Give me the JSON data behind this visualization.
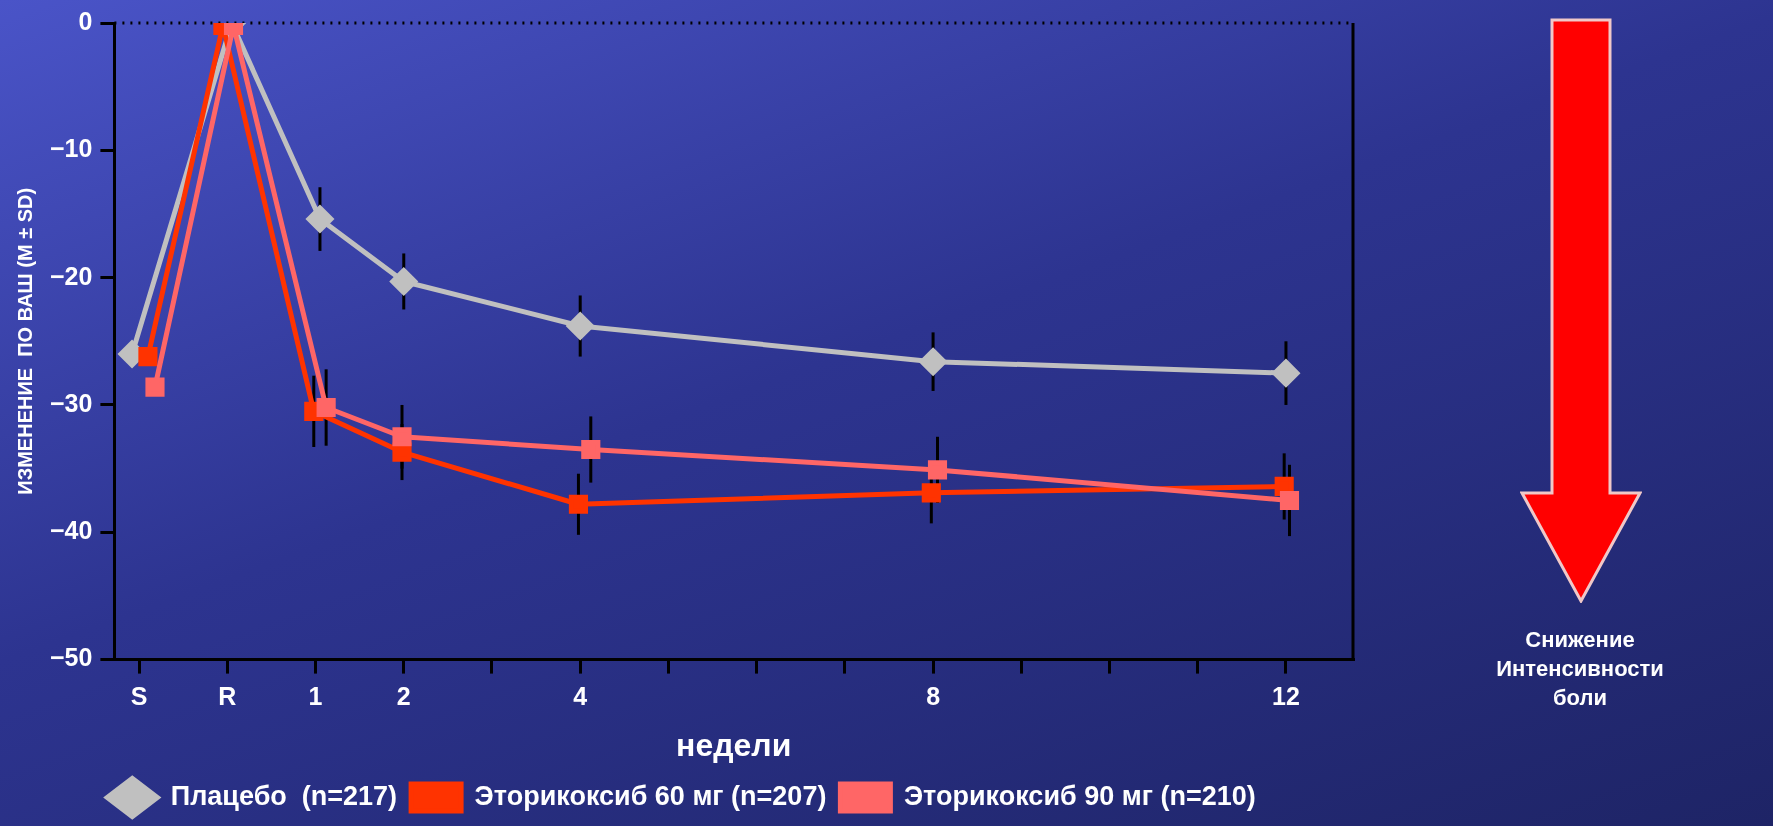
{
  "chart_data": {
    "type": "line",
    "xlabel": "недели",
    "ylabel": "ИЗМЕНЕНИЕ  ПО ВАШ (M ± SD)",
    "xlim": [
      -1.28,
      12.76
    ],
    "xticks": [
      {
        "value": -1,
        "label": "S"
      },
      {
        "value": 0,
        "label": "R"
      },
      1,
      2,
      {
        "value": 3,
        "label": null
      },
      4,
      {
        "value": 5,
        "label": null
      },
      {
        "value": 6,
        "label": null
      },
      {
        "value": 7,
        "label": null
      },
      8,
      {
        "value": 9,
        "label": null
      },
      {
        "value": 10,
        "label": null
      },
      {
        "value": 11,
        "label": null
      },
      12
    ],
    "ylim": [
      -50,
      0
    ],
    "yticks": [
      0,
      {
        "value": -10,
        "label": "−10"
      },
      {
        "value": -20,
        "label": "−20"
      },
      {
        "value": -30,
        "label": "−30"
      },
      {
        "value": -40,
        "label": "−40"
      },
      {
        "value": -50,
        "label": "−50"
      }
    ],
    "grid": false,
    "legend": "bottom",
    "line_style": "solid",
    "ref_lines": [
      {
        "axis": "y",
        "value": 0,
        "color": "#000000",
        "line_style": "dotted"
      }
    ],
    "annotations": [
      "Снижение Интенсивности боли"
    ],
    "series": [
      {
        "name": "Плацебо  (n=217)",
        "color": "#c0c0c0",
        "marker": "diamond",
        "x": [
          -1.08,
          0.05,
          1.05,
          2,
          4,
          8,
          12
        ],
        "values": [
          -26,
          0,
          -15.4,
          -20.3,
          -23.8,
          -26.6,
          -27.5
        ],
        "errors": [
          null,
          null,
          2.5,
          2.2,
          2.4,
          2.3,
          2.5
        ]
      },
      {
        "name": "Эторикоксиб 60 мг (n=207)",
        "color": "#ff3300",
        "marker": "square",
        "x": [
          -0.9,
          -0.05,
          0.98,
          1.98,
          3.98,
          7.98,
          11.98
        ],
        "values": [
          -26.2,
          -0.2,
          -30.5,
          -33.7,
          -37.8,
          -36.9,
          -36.4
        ],
        "errors": [
          null,
          null,
          2.8,
          2.2,
          2.4,
          2.4,
          2.6
        ]
      },
      {
        "name": "Эторикоксиб 90 мг (n=210)",
        "color": "#ff6666",
        "marker": "square",
        "x": [
          -0.82,
          0.07,
          1.12,
          1.98,
          4.12,
          8.05,
          12.04
        ],
        "values": [
          -28.6,
          -0.2,
          -30.2,
          -32.5,
          -33.5,
          -35.1,
          -37.5
        ],
        "errors": [
          null,
          null,
          3,
          2.5,
          2.6,
          2.6,
          2.8
        ]
      }
    ]
  }
}
